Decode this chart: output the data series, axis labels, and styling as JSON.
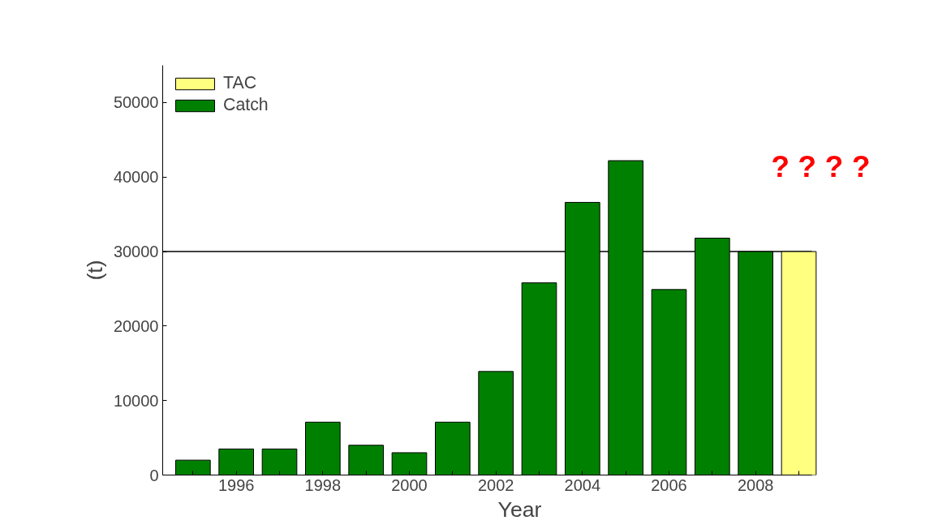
{
  "chart_data": {
    "type": "bar",
    "xlabel": "Year",
    "ylabel": "(t)",
    "x": [
      1995,
      1996,
      1997,
      1998,
      1999,
      2000,
      2001,
      2002,
      2003,
      2004,
      2005,
      2006,
      2007,
      2008,
      2009
    ],
    "series": [
      {
        "name": "TAC",
        "color": "#ffff80",
        "values": [
          null,
          null,
          null,
          null,
          null,
          null,
          null,
          null,
          null,
          null,
          null,
          null,
          null,
          null,
          30000
        ]
      },
      {
        "name": "Catch",
        "color": "#008000",
        "values": [
          2000,
          3500,
          3500,
          7100,
          4000,
          3000,
          7100,
          13900,
          25800,
          36600,
          42200,
          24900,
          31800,
          30000,
          null
        ]
      }
    ],
    "xlim": [
      1994.3,
      2009.3
    ],
    "xticks": [
      {
        "value": 1995,
        "label": null
      },
      1996,
      {
        "value": 1997,
        "label": null
      },
      1998,
      {
        "value": 1999,
        "label": null
      },
      2000,
      {
        "value": 2001,
        "label": null
      },
      2002,
      {
        "value": 2003,
        "label": null
      },
      2004,
      {
        "value": 2005,
        "label": null
      },
      2006,
      {
        "value": 2007,
        "label": null
      },
      2008,
      {
        "value": 2009,
        "label": null
      }
    ],
    "ylim": [
      0,
      55000
    ],
    "yticks": [
      0,
      10000,
      20000,
      30000,
      40000,
      50000
    ],
    "ref_lines": [
      {
        "axis": "y",
        "value": 30000,
        "color": "#000000"
      }
    ],
    "annotations": [
      "? ? ? ?"
    ],
    "legend": "top left",
    "grid": false
  }
}
